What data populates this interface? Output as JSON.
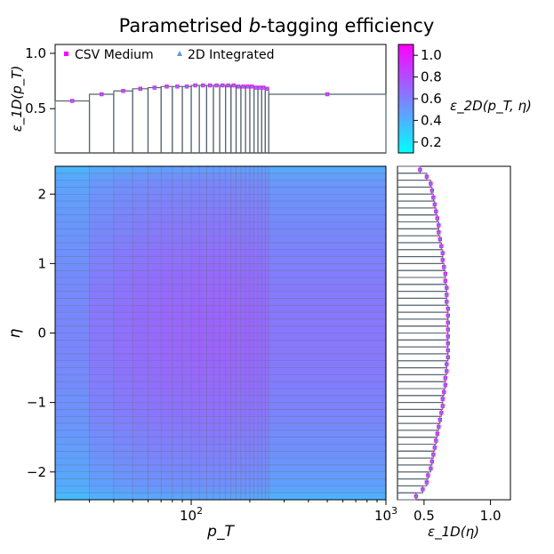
{
  "chart_data": {
    "type": "heatmap",
    "title_pre": "Parametrised ",
    "title_italic": "b",
    "title_post": "-tagging efficiency",
    "x_label": "p_T",
    "y_label": "η",
    "colorbar_label": "ε_2D(p_T, η)",
    "top_ylabel": "ε_1D(p_T)",
    "right_xlabel": "ε_1D(η)",
    "x_scale": "log",
    "x_range": [
      20,
      1000
    ],
    "y_range": [
      -2.4,
      2.4
    ],
    "colorbar_range": [
      0.1,
      1.1
    ],
    "colorbar_ticks": [
      "0.2",
      "0.4",
      "0.6",
      "0.8",
      "1.0"
    ],
    "x_ticks": [
      {
        "value": 100,
        "base": "10",
        "exp": "2"
      },
      {
        "value": 1000,
        "base": "10",
        "exp": "3"
      }
    ],
    "y_ticks": [
      {
        "value": -2,
        "label": "−2"
      },
      {
        "value": -1,
        "label": "−1"
      },
      {
        "value": 0,
        "label": "0"
      },
      {
        "value": 1,
        "label": "1"
      },
      {
        "value": 2,
        "label": "2"
      }
    ],
    "top_yticks": [
      {
        "value": 0.5,
        "label": "0.5"
      },
      {
        "value": 1.0,
        "label": "1.0"
      }
    ],
    "top_yrange": [
      0.1,
      1.08
    ],
    "right_xticks": [
      {
        "value": 0.5,
        "label": "0.5"
      },
      {
        "value": 1.0,
        "label": "1.0"
      }
    ],
    "right_xrange": [
      0.3,
      1.15
    ],
    "legend": [
      {
        "name": "CSV Medium",
        "marker": "square",
        "color": "#ff00ff"
      },
      {
        "name": "2D Integrated",
        "marker": "triangle",
        "color": "#5a9bd5"
      }
    ],
    "legend_position": "top-left",
    "pt_bin_edges": [
      20,
      30,
      40,
      50,
      60,
      70,
      80,
      90,
      100,
      110,
      120,
      130,
      140,
      150,
      160,
      170,
      180,
      190,
      200,
      210,
      220,
      230,
      240,
      250,
      1000
    ],
    "pt_efficiency": [
      0.57,
      0.63,
      0.66,
      0.68,
      0.69,
      0.7,
      0.7,
      0.7,
      0.71,
      0.71,
      0.71,
      0.71,
      0.71,
      0.71,
      0.71,
      0.7,
      0.7,
      0.7,
      0.7,
      0.69,
      0.69,
      0.69,
      0.68,
      0.63
    ],
    "eta_bin_edges": [
      -2.4,
      -2.3,
      -2.2,
      -2.1,
      -2.0,
      -1.9,
      -1.8,
      -1.7,
      -1.6,
      -1.5,
      -1.4,
      -1.3,
      -1.2,
      -1.1,
      -1.0,
      -0.9,
      -0.8,
      -0.7,
      -0.6,
      -0.5,
      -0.4,
      -0.3,
      -0.2,
      -0.1,
      0.0,
      0.1,
      0.2,
      0.3,
      0.4,
      0.5,
      0.6,
      0.7,
      0.8,
      0.9,
      1.0,
      1.1,
      1.2,
      1.3,
      1.4,
      1.5,
      1.6,
      1.7,
      1.8,
      1.9,
      2.0,
      2.1,
      2.2,
      2.3,
      2.4
    ],
    "eta_efficiency": [
      0.44,
      0.49,
      0.52,
      0.53,
      0.55,
      0.56,
      0.57,
      0.58,
      0.59,
      0.6,
      0.61,
      0.62,
      0.63,
      0.64,
      0.64,
      0.65,
      0.66,
      0.66,
      0.67,
      0.67,
      0.68,
      0.68,
      0.68,
      0.68,
      0.68,
      0.68,
      0.68,
      0.68,
      0.67,
      0.67,
      0.67,
      0.66,
      0.66,
      0.65,
      0.64,
      0.64,
      0.63,
      0.62,
      0.61,
      0.61,
      0.6,
      0.59,
      0.58,
      0.57,
      0.56,
      0.55,
      0.52,
      0.47
    ]
  }
}
